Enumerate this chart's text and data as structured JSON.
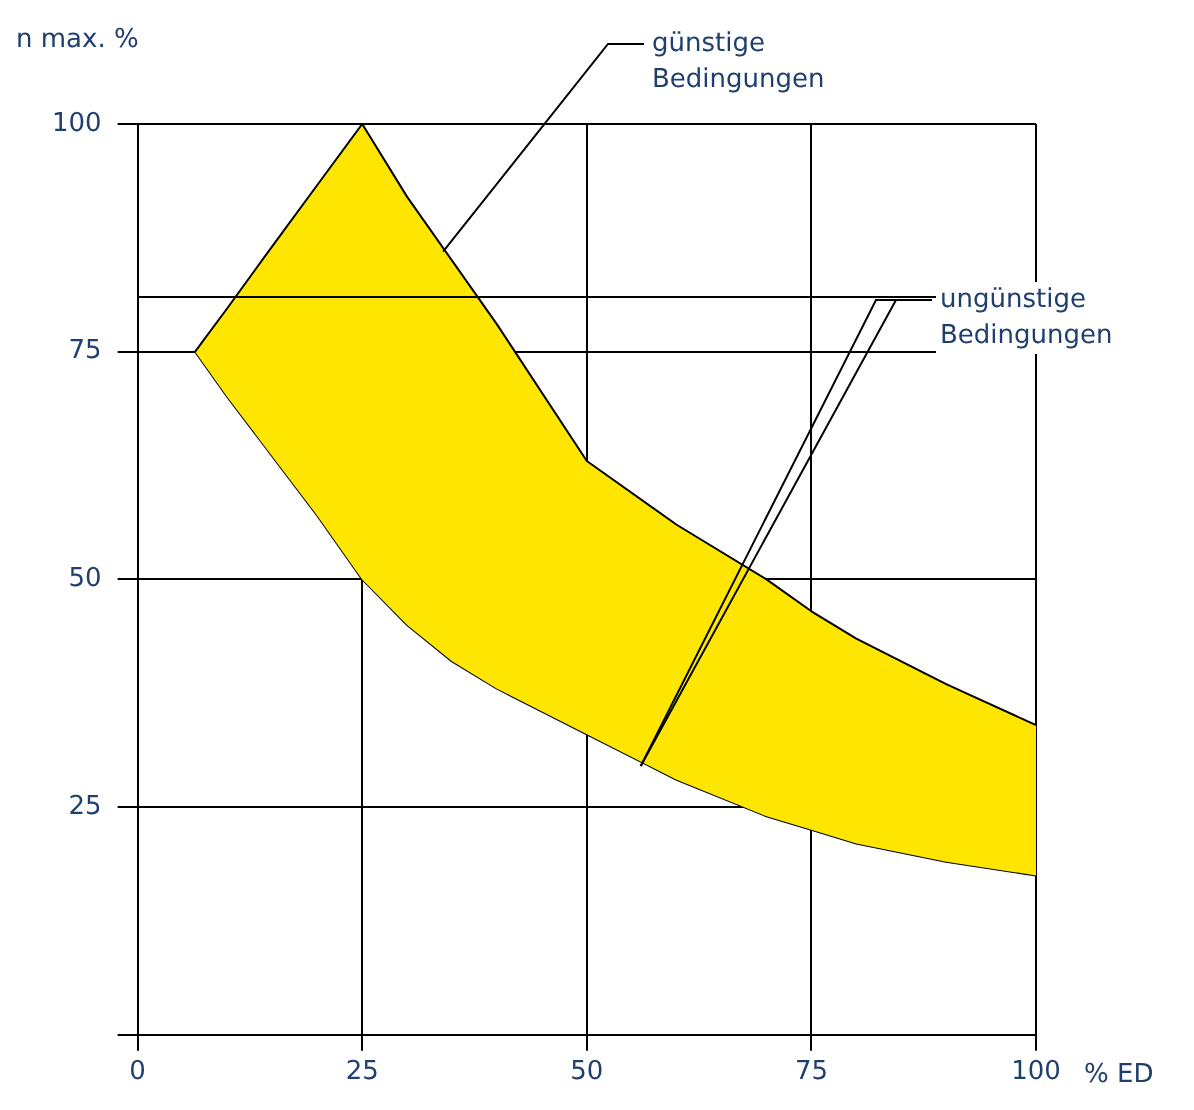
{
  "chart_data": {
    "type": "area",
    "xlabel": "% ED",
    "ylabel": "n max. %",
    "x": [
      6.4,
      10,
      15,
      20,
      25,
      30,
      35,
      40,
      50,
      60,
      70,
      75,
      80,
      90,
      100
    ],
    "series": [
      {
        "type": "area",
        "color": "#ffe600",
        "values": [
          75,
          79.8,
          86.6,
          93.3,
          100,
          92,
          85,
          78,
          63,
          56,
          50,
          46.5,
          43.5,
          38.5,
          34
        ]
      },
      {
        "type": "line",
        "color": "#000000",
        "values": [
          75,
          70,
          63.5,
          57,
          50,
          45,
          41,
          38,
          33,
          28,
          24,
          22.5,
          21,
          19,
          17.5
        ]
      }
    ],
    "xlim": [
      0,
      100
    ],
    "xticks": [
      0,
      25,
      50,
      75,
      100
    ],
    "ylim": [
      0,
      100
    ],
    "yticks": [
      {
        "value": 0,
        "label": null
      },
      25,
      50,
      75,
      100
    ],
    "ref_lines": [
      {
        "axis": "y",
        "value": 81
      }
    ],
    "grid": true,
    "legend": false,
    "annotations": [
      {
        "text": "günstige Bedingungen",
        "x": 34,
        "y": 86
      },
      {
        "text": "ungünstige Bedingungen",
        "x": 56,
        "y": 29.5
      }
    ]
  }
}
